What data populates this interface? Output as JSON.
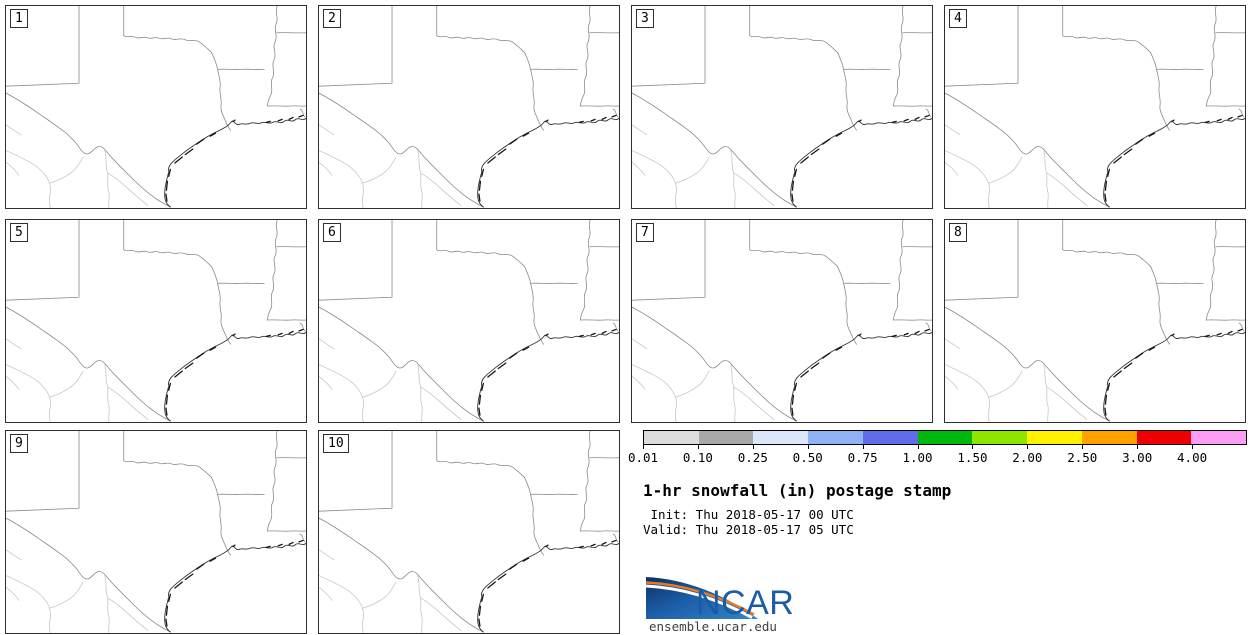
{
  "title": "1-hr snowfall (in) postage stamp",
  "init_label": " Init: Thu 2018-05-17 00 UTC",
  "valid_label": "Valid: Thu 2018-05-17 05 UTC",
  "panels": {
    "labels": [
      "1",
      "2",
      "3",
      "4",
      "5",
      "6",
      "7",
      "8",
      "9",
      "10"
    ]
  },
  "colorbar": {
    "ticks": [
      "0.01",
      "0.10",
      "0.25",
      "0.50",
      "0.75",
      "1.00",
      "1.50",
      "2.00",
      "2.50",
      "3.00",
      "4.00"
    ],
    "colors": [
      "#dcdcdc",
      "#a8a8a8",
      "#dce6fa",
      "#8fb2f5",
      "#5f6ee8",
      "#00b70d",
      "#8ee600",
      "#fff200",
      "#ffa200",
      "#ee0000",
      "#fb9cf5"
    ]
  },
  "branding": {
    "logo_text": "NCAR",
    "site": "ensemble.ucar.edu",
    "logo_blue": "#1b5ca6",
    "logo_navy": "#0d2f60",
    "logo_orange": "#e87a25"
  },
  "chart_data": {
    "type": "heatmap",
    "title": "1-hr snowfall (in) postage stamp",
    "init_time": "Thu 2018-05-17 00 UTC",
    "valid_time": "Thu 2018-05-17 05 UTC",
    "panel_count": 10,
    "panel_labels": [
      "1",
      "2",
      "3",
      "4",
      "5",
      "6",
      "7",
      "8",
      "9",
      "10"
    ],
    "region": "Texas and surrounding south-central U.S. / northern Mexico, Gulf coast",
    "colorbar_levels_in": [
      0.01,
      0.1,
      0.25,
      0.5,
      0.75,
      1.0,
      1.5,
      2.0,
      2.5,
      3.0,
      4.0
    ],
    "colorbar_colors": [
      "#dcdcdc",
      "#a8a8a8",
      "#dce6fa",
      "#8fb2f5",
      "#5f6ee8",
      "#00b70d",
      "#8ee600",
      "#fff200",
      "#ffa200",
      "#ee0000",
      "#fb9cf5"
    ],
    "values": "All 10 ensemble member panels are blank: no 1-hr snowfall >= 0.01 in anywhere in the domain",
    "legend_position": "right column, below panel 8",
    "grid": false
  }
}
